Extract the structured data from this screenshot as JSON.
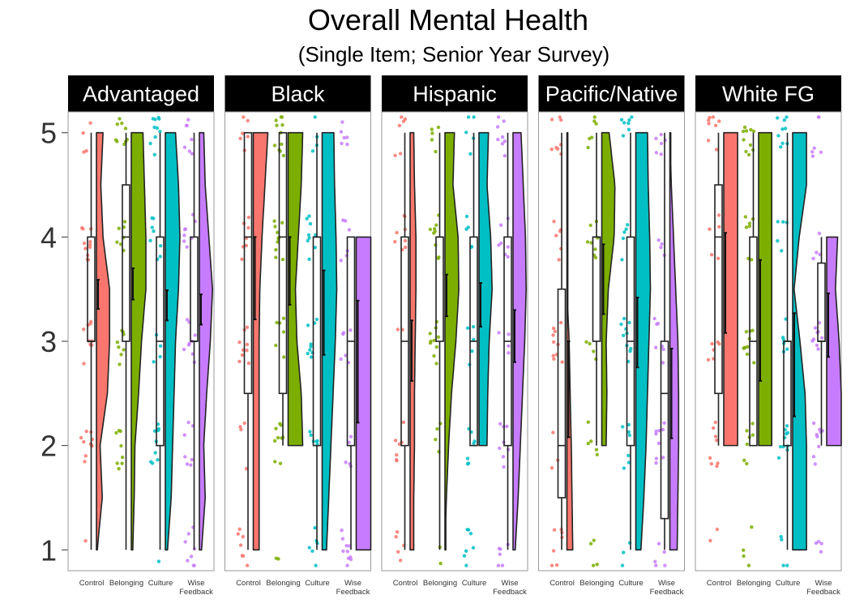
{
  "chart_data": {
    "type": "raincloud",
    "title": "Overall Mental Health",
    "subtitle": "(Single Item; Senior Year Survey)",
    "xlabel": "",
    "ylabel": "",
    "ylim": [
      0.8,
      5.2
    ],
    "yticks": [
      1,
      2,
      3,
      4,
      5
    ],
    "categories": [
      "Control",
      "Belonging",
      "Culture",
      "Wise Feedback"
    ],
    "category_labels": [
      [
        "Control"
      ],
      [
        "Belonging"
      ],
      [
        "Culture"
      ],
      [
        "Wise",
        "Feedback"
      ]
    ],
    "colors": {
      "Control": "#F8766D",
      "Belonging": "#7CAE00",
      "Culture": "#00BFC4",
      "Wise Feedback": "#C77CFF"
    },
    "panels": [
      {
        "name": "Advantaged",
        "groups": [
          {
            "category": "Control",
            "box": {
              "min": 1,
              "q1": 3,
              "median": 3,
              "q3": 4,
              "max": 5
            },
            "mean": 3.45,
            "ci": [
              3.31,
              3.59
            ],
            "density": [
              0.05,
              0.4,
              0.25,
              0.75,
              0.9,
              0.9,
              0.45,
              0.3,
              0.45
            ]
          },
          {
            "category": "Belonging",
            "box": {
              "min": 1,
              "q1": 3,
              "median": 4,
              "q3": 4.5,
              "max": 5
            },
            "mean": 3.55,
            "ci": [
              3.4,
              3.7
            ],
            "density": [
              0.1,
              0.2,
              0.25,
              0.5,
              0.7,
              1.0,
              1.0,
              0.9,
              0.8
            ]
          },
          {
            "category": "Culture",
            "box": {
              "min": 1,
              "q1": 2,
              "median": 3,
              "q3": 4,
              "max": 5
            },
            "mean": 3.35,
            "ci": [
              3.2,
              3.49
            ],
            "density": [
              0.15,
              0.4,
              0.5,
              0.6,
              0.7,
              0.9,
              1.0,
              0.9,
              0.7
            ]
          },
          {
            "category": "Wise Feedback",
            "box": {
              "min": 1,
              "q1": 3,
              "median": 3,
              "q3": 4,
              "max": 5
            },
            "mean": 3.3,
            "ci": [
              3.16,
              3.45
            ],
            "density": [
              0.15,
              0.4,
              0.3,
              0.5,
              0.75,
              0.9,
              0.65,
              0.4,
              0.3
            ]
          }
        ]
      },
      {
        "name": "Black",
        "groups": [
          {
            "category": "Control",
            "box": {
              "min": 1,
              "q1": 2.5,
              "median": 4,
              "q3": 5,
              "max": 5
            },
            "mean": 3.6,
            "ci": [
              3.21,
              4.0
            ],
            "density": [
              0.4,
              0.4,
              0.4,
              0.4,
              0.4,
              0.45,
              0.6,
              0.8,
              1.0
            ]
          },
          {
            "category": "Belonging",
            "box": {
              "min": 2,
              "q1": 2.5,
              "median": 4,
              "q3": 5,
              "max": 5
            },
            "mean": 3.7,
            "ci": [
              3.35,
              4.0
            ],
            "density": [
              0.0,
              0.0,
              1.0,
              0.9,
              0.6,
              0.5,
              0.7,
              0.9,
              1.0
            ]
          },
          {
            "category": "Culture",
            "box": {
              "min": 1,
              "q1": 2,
              "median": 4,
              "q3": 4,
              "max": 5
            },
            "mean": 3.3,
            "ci": [
              2.87,
              3.68
            ],
            "density": [
              0.3,
              0.45,
              0.6,
              0.75,
              0.9,
              1.0,
              0.95,
              0.85,
              0.8
            ]
          },
          {
            "category": "Wise Feedback",
            "box": {
              "min": 1,
              "q1": 2,
              "median": 3,
              "q3": 4,
              "max": 4
            },
            "mean": 2.85,
            "ci": [
              2.22,
              3.39
            ],
            "density": [
              1.0,
              1.0,
              1.0,
              1.0,
              1.0,
              1.0,
              1.0,
              0.0,
              0.0
            ]
          }
        ]
      },
      {
        "name": "Hispanic",
        "groups": [
          {
            "category": "Control",
            "box": {
              "min": 1,
              "q1": 2,
              "median": 3,
              "q3": 4,
              "max": 5
            },
            "mean": 2.9,
            "ci": [
              2.62,
              3.2
            ],
            "density": [
              0.25,
              0.25,
              0.3,
              0.3,
              0.35,
              0.4,
              0.4,
              0.3,
              0.25
            ]
          },
          {
            "category": "Belonging",
            "box": {
              "min": 1,
              "q1": 3,
              "median": 4,
              "q3": 4,
              "max": 5
            },
            "mean": 3.45,
            "ci": [
              3.24,
              3.64
            ],
            "density": [
              0.0,
              0.1,
              0.25,
              0.45,
              0.75,
              0.95,
              0.9,
              0.55,
              0.65
            ]
          },
          {
            "category": "Culture",
            "box": {
              "min": 2,
              "q1": 2,
              "median": 3,
              "q3": 4,
              "max": 5
            },
            "mean": 3.35,
            "ci": [
              3.14,
              3.56
            ],
            "density": [
              0.0,
              0.0,
              0.55,
              0.6,
              0.7,
              0.9,
              0.8,
              0.55,
              0.65
            ]
          },
          {
            "category": "Wise Feedback",
            "box": {
              "min": 1,
              "q1": 2,
              "median": 3,
              "q3": 4,
              "max": 5
            },
            "mean": 3.05,
            "ci": [
              2.8,
              3.3
            ],
            "density": [
              0.15,
              0.35,
              0.5,
              0.65,
              0.8,
              0.9,
              0.85,
              0.7,
              0.55
            ]
          }
        ]
      },
      {
        "name": "Pacific/Native",
        "groups": [
          {
            "category": "Control",
            "box": {
              "min": 1,
              "q1": 1.5,
              "median": 2,
              "q3": 3.5,
              "max": 5
            },
            "mean": 2.55,
            "ci": [
              2.08,
              3.0
            ],
            "density": [
              0.4,
              0.35,
              0.3,
              0.22,
              0.15,
              0.0,
              0.0,
              0.0,
              0.0
            ]
          },
          {
            "category": "Belonging",
            "box": {
              "min": 2,
              "q1": 3,
              "median": 4,
              "q3": 4,
              "max": 5
            },
            "mean": 3.6,
            "ci": [
              3.26,
              3.93
            ],
            "density": [
              0.0,
              0.0,
              0.3,
              0.35,
              0.3,
              0.45,
              0.85,
              0.9,
              0.5
            ]
          },
          {
            "category": "Culture",
            "box": {
              "min": 1,
              "q1": 2,
              "median": 3,
              "q3": 4,
              "max": 5
            },
            "mean": 3.1,
            "ci": [
              2.75,
              3.42
            ],
            "density": [
              0.35,
              0.55,
              0.7,
              0.8,
              0.9,
              1.0,
              0.95,
              0.85,
              0.8
            ]
          },
          {
            "category": "Wise Feedback",
            "box": {
              "min": 1,
              "q1": 1.3,
              "median": 2.5,
              "q3": 3,
              "max": 5
            },
            "mean": 2.5,
            "ci": [
              2.07,
              2.93
            ],
            "density": [
              0.5,
              0.55,
              0.6,
              0.6,
              0.55,
              0.4,
              0.25,
              0.1,
              0.0
            ]
          }
        ]
      },
      {
        "name": "White FG",
        "groups": [
          {
            "category": "Control",
            "box": {
              "min": 2,
              "q1": 2.5,
              "median": 4,
              "q3": 4.5,
              "max": 5
            },
            "mean": 3.55,
            "ci": [
              3.08,
              4.04
            ],
            "density": [
              0.0,
              0.0,
              0.95,
              0.95,
              0.95,
              0.95,
              0.95,
              0.95,
              0.95
            ]
          },
          {
            "category": "Belonging",
            "box": {
              "min": 2,
              "q1": 2,
              "median": 3,
              "q3": 4,
              "max": 5
            },
            "mean": 3.2,
            "ci": [
              2.62,
              3.78
            ],
            "density": [
              0.0,
              0.0,
              0.9,
              0.9,
              0.9,
              0.9,
              0.9,
              0.9,
              0.9
            ]
          },
          {
            "category": "Culture",
            "box": {
              "min": 1,
              "q1": 2,
              "median": 3,
              "q3": 3,
              "max": 5
            },
            "mean": 2.8,
            "ci": [
              2.28,
              3.27
            ],
            "density": [
              0.95,
              0.95,
              0.95,
              0.85,
              0.5,
              0.1,
              0.45,
              0.95,
              0.95
            ]
          },
          {
            "category": "Wise Feedback",
            "box": {
              "min": 2,
              "q1": 3,
              "median": 3,
              "q3": 3.75,
              "max": 4
            },
            "mean": 3.15,
            "ci": [
              2.85,
              3.46
            ],
            "density": [
              0.0,
              0.0,
              1.0,
              1.0,
              0.85,
              0.6,
              0.75,
              0.0,
              0.0
            ]
          }
        ]
      }
    ]
  }
}
